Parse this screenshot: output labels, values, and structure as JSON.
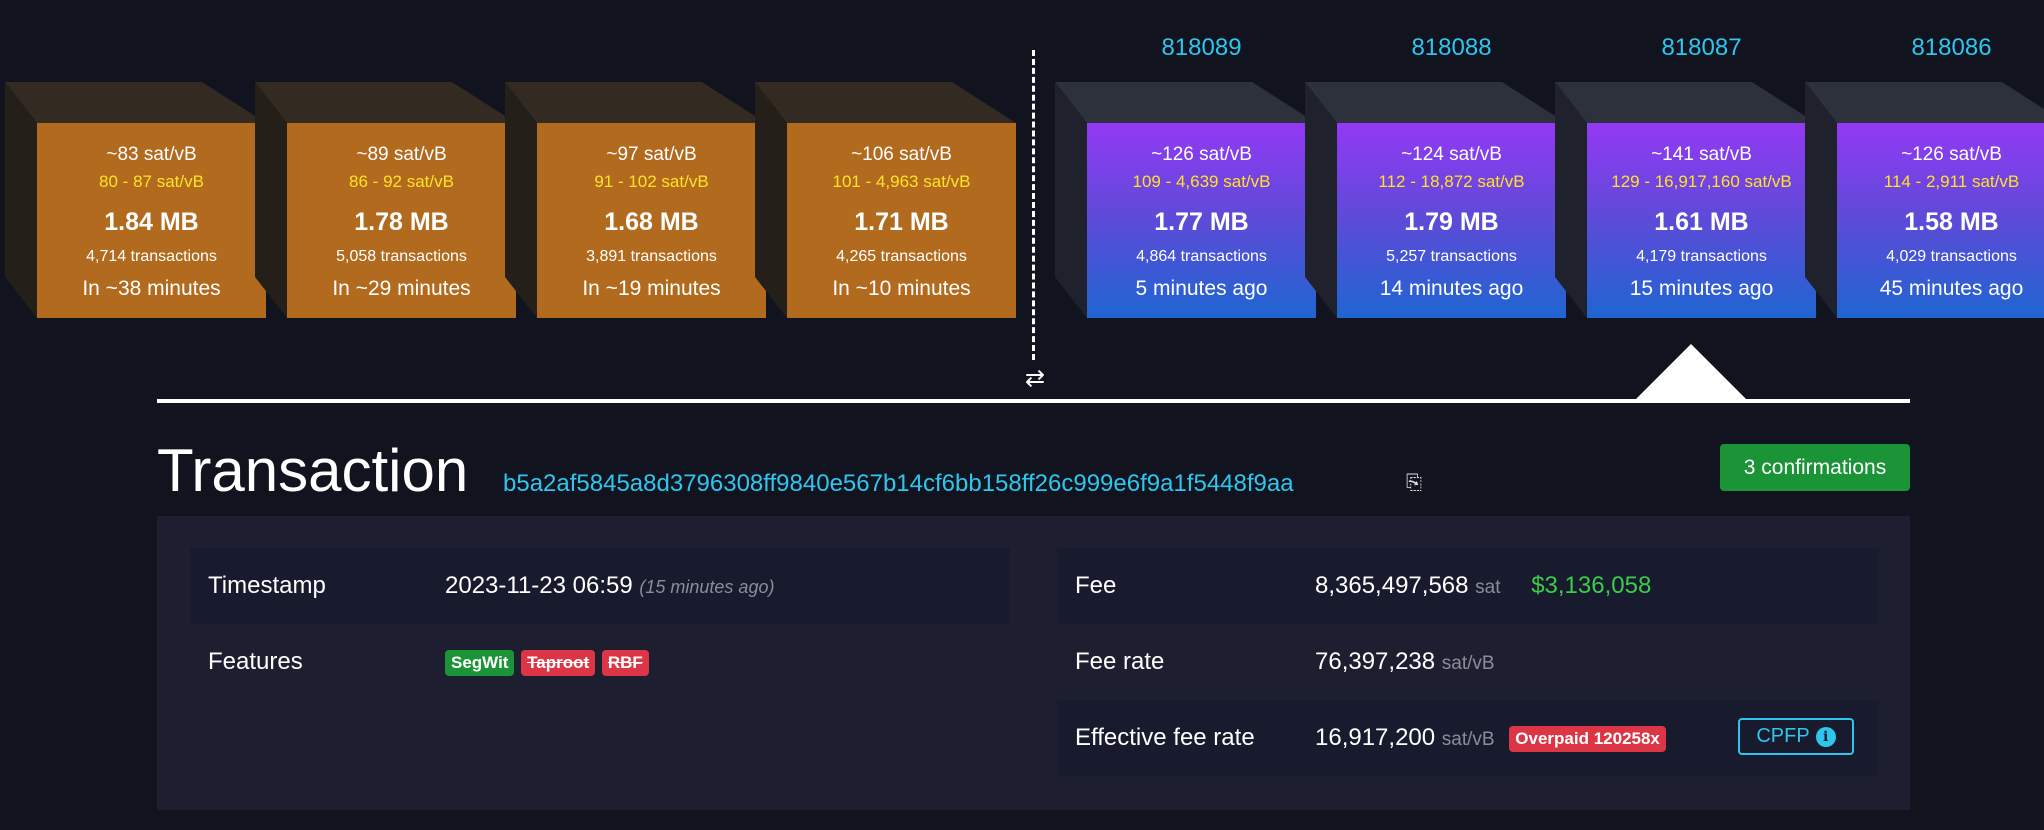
{
  "mempool_blocks": [
    {
      "median_fee": "~83 sat/vB",
      "fee_range": "80 - 87 sat/vB",
      "size": "1.84 MB",
      "tx_count": "4,714 transactions",
      "eta": "In ~38 minutes"
    },
    {
      "median_fee": "~89 sat/vB",
      "fee_range": "86 - 92 sat/vB",
      "size": "1.78 MB",
      "tx_count": "5,058 transactions",
      "eta": "In ~29 minutes"
    },
    {
      "median_fee": "~97 sat/vB",
      "fee_range": "91 - 102 sat/vB",
      "size": "1.68 MB",
      "tx_count": "3,891 transactions",
      "eta": "In ~19 minutes"
    },
    {
      "median_fee": "~106 sat/vB",
      "fee_range": "101 - 4,963 sat/vB",
      "size": "1.71 MB",
      "tx_count": "4,265 transactions",
      "eta": "In ~10 minutes"
    }
  ],
  "mined_blocks": [
    {
      "height": "818089",
      "median_fee": "~126 sat/vB",
      "fee_range": "109 - 4,639 sat/vB",
      "size": "1.77 MB",
      "tx_count": "4,864 transactions",
      "time": "5 minutes ago"
    },
    {
      "height": "818088",
      "median_fee": "~124 sat/vB",
      "fee_range": "112 - 18,872 sat/vB",
      "size": "1.79 MB",
      "tx_count": "5,257 transactions",
      "time": "14 minutes ago"
    },
    {
      "height": "818087",
      "median_fee": "~141 sat/vB",
      "fee_range": "129 - 16,917,160 sat/vB",
      "size": "1.61 MB",
      "tx_count": "4,179 transactions",
      "time": "15 minutes ago"
    },
    {
      "height": "818086",
      "median_fee": "~126 sat/vB",
      "fee_range": "114 - 2,911 sat/vB",
      "size": "1.58 MB",
      "tx_count": "4,029 transactions",
      "time": "45 minutes ago"
    }
  ],
  "swap_icon": "⇄",
  "transaction": {
    "title": "Transaction",
    "txid": "b5a2af5845a8d3796308ff9840e567b14cf6bb158ff26c999e6f9a1f5448f9aa",
    "clipboard_icon": "⎘",
    "confirmations": "3 confirmations",
    "timestamp_label": "Timestamp",
    "timestamp_value": "2023-11-23 06:59",
    "timestamp_ago": "(15 minutes ago)",
    "features_label": "Features",
    "features": {
      "segwit": "SegWit",
      "taproot": "Taproot",
      "rbf": "RBF"
    },
    "fee_label": "Fee",
    "fee_value": "8,365,497,568",
    "fee_unit": "sat",
    "fee_usd": "$3,136,058",
    "fee_rate_label": "Fee rate",
    "fee_rate_value": "76,397,238",
    "fee_rate_unit": "sat/vB",
    "eff_fee_rate_label": "Effective fee rate",
    "eff_fee_rate_value": "16,917,200",
    "eff_fee_rate_unit": "sat/vB",
    "overpaid_badge": "Overpaid 120258x",
    "cpfp_label": "CPFP",
    "info_icon": "i"
  },
  "colors": {
    "background": "#11131f",
    "mempool_face": "#b26b1e",
    "mined_gradient_top": "#9339f4",
    "mined_gradient_bottom": "#1f65d1",
    "accent_cyan": "#2fc6ee",
    "fee_range_yellow": "#ffe227",
    "green": "#1a9436",
    "red": "#dc3545"
  }
}
